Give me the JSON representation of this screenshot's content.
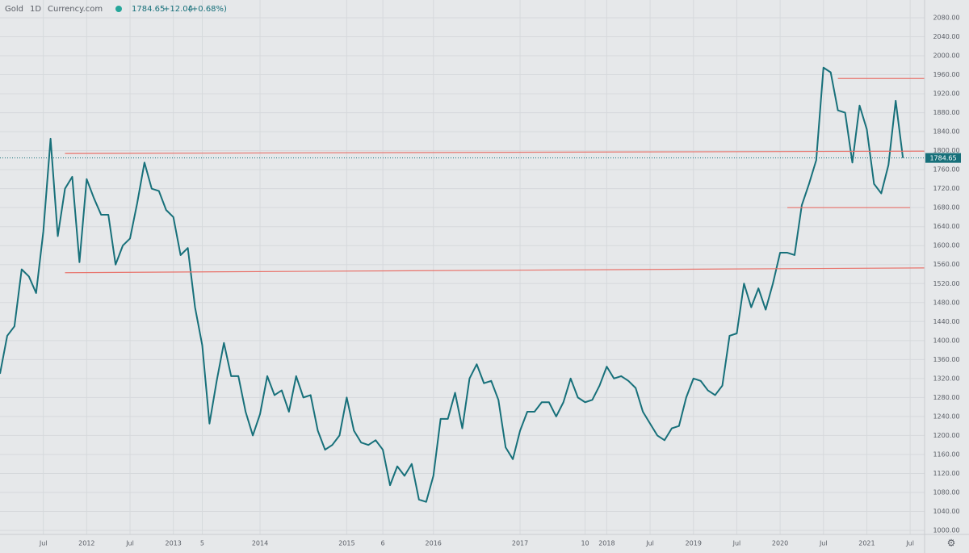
{
  "header": {
    "symbol": "Gold",
    "interval": "1D",
    "source": "Currency.com",
    "change": "+12.04",
    "change_pct": "(+0.68%)"
  },
  "chart_data": {
    "type": "line",
    "x": [
      "2011-01",
      "2011-02",
      "2011-03",
      "2011-04",
      "2011-05",
      "2011-06",
      "2011-07",
      "2011-08",
      "2011-09",
      "2011-10",
      "2011-11",
      "2011-12",
      "2012-01",
      "2012-02",
      "2012-03",
      "2012-04",
      "2012-05",
      "2012-06",
      "2012-07",
      "2012-08",
      "2012-09",
      "2012-10",
      "2012-11",
      "2012-12",
      "2013-01",
      "2013-02",
      "2013-03",
      "2013-04",
      "2013-05",
      "2013-06",
      "2013-07",
      "2013-08",
      "2013-09",
      "2013-10",
      "2013-11",
      "2013-12",
      "2014-01",
      "2014-02",
      "2014-03",
      "2014-04",
      "2014-05",
      "2014-06",
      "2014-07",
      "2014-08",
      "2014-09",
      "2014-10",
      "2014-11",
      "2014-12",
      "2015-01",
      "2015-02",
      "2015-03",
      "2015-04",
      "2015-05",
      "2015-06",
      "2015-07",
      "2015-08",
      "2015-09",
      "2015-10",
      "2015-11",
      "2015-12",
      "2016-01",
      "2016-02",
      "2016-03",
      "2016-04",
      "2016-05",
      "2016-06",
      "2016-07",
      "2016-08",
      "2016-09",
      "2016-10",
      "2016-11",
      "2016-12",
      "2017-01",
      "2017-02",
      "2017-03",
      "2017-04",
      "2017-05",
      "2017-06",
      "2017-07",
      "2017-08",
      "2017-09",
      "2017-10",
      "2017-11",
      "2017-12",
      "2018-01",
      "2018-02",
      "2018-03",
      "2018-04",
      "2018-05",
      "2018-06",
      "2018-07",
      "2018-08",
      "2018-09",
      "2018-10",
      "2018-11",
      "2018-12",
      "2019-01",
      "2019-02",
      "2019-03",
      "2019-04",
      "2019-05",
      "2019-06",
      "2019-07",
      "2019-08",
      "2019-09",
      "2019-10",
      "2019-11",
      "2019-12",
      "2020-01",
      "2020-02",
      "2020-03",
      "2020-04",
      "2020-05",
      "2020-06",
      "2020-07",
      "2020-08",
      "2020-09",
      "2020-10",
      "2020-11",
      "2020-12",
      "2021-01",
      "2021-02",
      "2021-03",
      "2021-04",
      "2021-05",
      "2021-06"
    ],
    "series": [
      {
        "name": "Gold",
        "color": "#17707a",
        "values": [
          1330,
          1410,
          1430,
          1550,
          1535,
          1500,
          1630,
          1825,
          1620,
          1720,
          1745,
          1565,
          1740,
          1700,
          1665,
          1665,
          1560,
          1600,
          1615,
          1690,
          1775,
          1720,
          1715,
          1675,
          1660,
          1580,
          1595,
          1470,
          1390,
          1225,
          1315,
          1395,
          1325,
          1325,
          1250,
          1200,
          1245,
          1325,
          1285,
          1295,
          1250,
          1325,
          1280,
          1285,
          1210,
          1170,
          1180,
          1200,
          1280,
          1210,
          1185,
          1180,
          1190,
          1170,
          1095,
          1135,
          1115,
          1140,
          1065,
          1060,
          1115,
          1235,
          1235,
          1290,
          1215,
          1320,
          1350,
          1310,
          1315,
          1275,
          1175,
          1150,
          1210,
          1250,
          1250,
          1270,
          1270,
          1240,
          1270,
          1320,
          1280,
          1270,
          1275,
          1305,
          1345,
          1320,
          1325,
          1315,
          1300,
          1250,
          1225,
          1200,
          1190,
          1215,
          1220,
          1280,
          1320,
          1315,
          1295,
          1285,
          1305,
          1410,
          1415,
          1520,
          1470,
          1510,
          1465,
          1520,
          1585,
          1585,
          1580,
          1685,
          1730,
          1780,
          1975,
          1965,
          1885,
          1880,
          1775,
          1895,
          1845,
          1730,
          1710,
          1770,
          1905,
          1784.65
        ]
      }
    ],
    "xlim": [
      "2011-01",
      "2021-09"
    ],
    "xticks": [
      {
        "value": "2011-07",
        "label": "Jul"
      },
      {
        "value": "2012-01",
        "label": "2012"
      },
      {
        "value": "2012-07",
        "label": "Jul"
      },
      {
        "value": "2013-01",
        "label": "2013"
      },
      {
        "value": "2013-05",
        "label": "5"
      },
      {
        "value": "2014-01",
        "label": "2014"
      },
      {
        "value": "2015-01",
        "label": "2015"
      },
      {
        "value": "2015-06",
        "label": "6"
      },
      {
        "value": "2016-01",
        "label": "2016"
      },
      {
        "value": "2017-01",
        "label": "2017"
      },
      {
        "value": "2017-10",
        "label": "10"
      },
      {
        "value": "2018-01",
        "label": "2018"
      },
      {
        "value": "2018-07",
        "label": "Jul"
      },
      {
        "value": "2019-01",
        "label": "2019"
      },
      {
        "value": "2019-07",
        "label": "Jul"
      },
      {
        "value": "2020-01",
        "label": "2020"
      },
      {
        "value": "2020-07",
        "label": "Jul"
      },
      {
        "value": "2021-01",
        "label": "2021"
      },
      {
        "value": "2021-07",
        "label": "Jul"
      }
    ],
    "ylim": [
      1000,
      2080
    ],
    "yticks": [
      {
        "value": 1000,
        "label": "1000.00"
      },
      {
        "value": 1040,
        "label": "1040.00"
      },
      {
        "value": 1080,
        "label": "1080.00"
      },
      {
        "value": 1120,
        "label": "1120.00"
      },
      {
        "value": 1160,
        "label": "1160.00"
      },
      {
        "value": 1200,
        "label": "1200.00"
      },
      {
        "value": 1240,
        "label": "1240.00"
      },
      {
        "value": 1280,
        "label": "1280.00"
      },
      {
        "value": 1320,
        "label": "1320.00"
      },
      {
        "value": 1360,
        "label": "1360.00"
      },
      {
        "value": 1400,
        "label": "1400.00"
      },
      {
        "value": 1440,
        "label": "1440.00"
      },
      {
        "value": 1480,
        "label": "1480.00"
      },
      {
        "value": 1520,
        "label": "1520.00"
      },
      {
        "value": 1560,
        "label": "1560.00"
      },
      {
        "value": 1600,
        "label": "1600.00"
      },
      {
        "value": 1640,
        "label": "1640.00"
      },
      {
        "value": 1680,
        "label": "1680.00"
      },
      {
        "value": 1720,
        "label": "1720.00"
      },
      {
        "value": 1760,
        "label": "1760.00"
      },
      {
        "value": 1800,
        "label": "1800.00"
      },
      {
        "value": 1840,
        "label": "1840.00"
      },
      {
        "value": 1880,
        "label": "1880.00"
      },
      {
        "value": 1920,
        "label": "1920.00"
      },
      {
        "value": 1960,
        "label": "1960.00"
      },
      {
        "value": 2000,
        "label": "2000.00"
      },
      {
        "value": 2040,
        "label": "2040.00"
      },
      {
        "value": 2080,
        "label": "2080.00"
      }
    ],
    "grid": true,
    "levels": [
      {
        "color": "#e8736b",
        "x": [
          "2011-10",
          "2021-09"
        ],
        "y": [
          1794,
          1799
        ]
      },
      {
        "color": "#e8736b",
        "x": [
          "2011-10",
          "2021-09"
        ],
        "y": [
          1543,
          1553
        ]
      },
      {
        "color": "#e8736b",
        "x": [
          "2020-09",
          "2021-09"
        ],
        "y": [
          1952,
          1952
        ]
      },
      {
        "color": "#e8736b",
        "x": [
          "2020-02",
          "2021-07"
        ],
        "y": [
          1680,
          1680
        ]
      }
    ]
  }
}
